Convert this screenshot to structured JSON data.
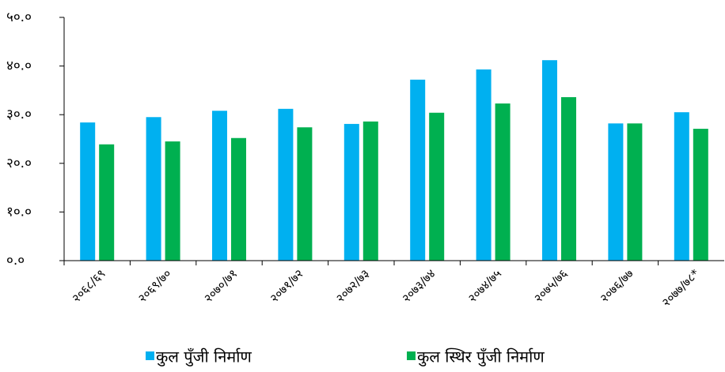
{
  "chart_data": {
    "type": "bar",
    "categories": [
      "२०६८/६९",
      "२०६९/७०",
      "२०७०/७१",
      "२०७१/७२",
      "२०७२/७३",
      "२०७३/७४",
      "२०७४/७५",
      "२०७५/७६",
      "२०७६/७७",
      "२०७७/७८*"
    ],
    "series": [
      {
        "name": "कुल पुँजी निर्माण",
        "color": "#00b0f0",
        "values": [
          28.4,
          29.5,
          30.8,
          31.2,
          28.1,
          37.2,
          39.3,
          41.2,
          28.2,
          30.5
        ]
      },
      {
        "name": "कुल  स्थिर पुँजी निर्माण",
        "color": "#00b050",
        "values": [
          23.9,
          24.5,
          25.2,
          27.4,
          28.6,
          30.4,
          32.3,
          33.6,
          28.2,
          27.1
        ]
      }
    ],
    "ylim": [
      0,
      50
    ],
    "yticks": [
      {
        "value": 0,
        "label": "०.०"
      },
      {
        "value": 10,
        "label": "१०.०"
      },
      {
        "value": 20,
        "label": "२०.०"
      },
      {
        "value": 30,
        "label": "३०.०"
      },
      {
        "value": 40,
        "label": "४०.०"
      },
      {
        "value": 50,
        "label": "५०.०"
      }
    ],
    "grid": false
  }
}
